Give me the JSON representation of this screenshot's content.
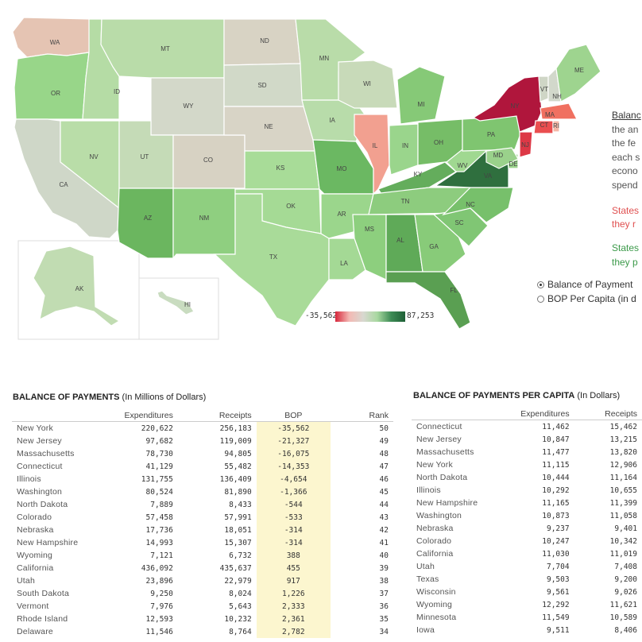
{
  "map": {
    "states": [
      {
        "id": "WA",
        "label": "WA",
        "color": "#e5c4b3"
      },
      {
        "id": "OR",
        "label": "OR",
        "color": "#98d689"
      },
      {
        "id": "CA",
        "label": "CA",
        "color": "#cfd7c8"
      },
      {
        "id": "ID",
        "label": "ID",
        "color": "#b5dca5"
      },
      {
        "id": "NV",
        "label": "NV",
        "color": "#b9dda8"
      },
      {
        "id": "MT",
        "label": "MT",
        "color": "#b9dca9"
      },
      {
        "id": "WY",
        "label": "WY",
        "color": "#d3d8c9"
      },
      {
        "id": "UT",
        "label": "UT",
        "color": "#c5dbb7"
      },
      {
        "id": "AZ",
        "label": "AZ",
        "color": "#6bb65f"
      },
      {
        "id": "CO",
        "label": "CO",
        "color": "#d7d2c3"
      },
      {
        "id": "NM",
        "label": "NM",
        "color": "#8fcf80"
      },
      {
        "id": "ND",
        "label": "ND",
        "color": "#d8d3c4"
      },
      {
        "id": "SD",
        "label": "SD",
        "color": "#d1d9c8"
      },
      {
        "id": "NE",
        "label": "NE",
        "color": "#d8d4c6"
      },
      {
        "id": "KS",
        "label": "KS",
        "color": "#a8dc98"
      },
      {
        "id": "OK",
        "label": "OK",
        "color": "#a5da95"
      },
      {
        "id": "TX",
        "label": "TX",
        "color": "#a9db99"
      },
      {
        "id": "MN",
        "label": "MN",
        "color": "#b9dca9"
      },
      {
        "id": "IA",
        "label": "IA",
        "color": "#b8dcaa"
      },
      {
        "id": "MO",
        "label": "MO",
        "color": "#6bb862"
      },
      {
        "id": "AR",
        "label": "AR",
        "color": "#9bd68c"
      },
      {
        "id": "LA",
        "label": "LA",
        "color": "#a4d995"
      },
      {
        "id": "WI",
        "label": "WI",
        "color": "#c8dab9"
      },
      {
        "id": "IL",
        "label": "IL",
        "color": "#f2a090"
      },
      {
        "id": "MI",
        "label": "MI",
        "color": "#86c977"
      },
      {
        "id": "IN",
        "label": "IN",
        "color": "#9ad58c"
      },
      {
        "id": "OH",
        "label": "OH",
        "color": "#76bd67"
      },
      {
        "id": "KY",
        "label": "KY",
        "color": "#64ad5c"
      },
      {
        "id": "TN",
        "label": "TN",
        "color": "#8dcc7e"
      },
      {
        "id": "MS",
        "label": "MS",
        "color": "#8dcf7e"
      },
      {
        "id": "AL",
        "label": "AL",
        "color": "#5faa58"
      },
      {
        "id": "GA",
        "label": "GA",
        "color": "#88cb79"
      },
      {
        "id": "FL",
        "label": "FL",
        "color": "#5a9f52"
      },
      {
        "id": "SC",
        "label": "SC",
        "color": "#80c674"
      },
      {
        "id": "NC",
        "label": "NC",
        "color": "#77c06b"
      },
      {
        "id": "VA",
        "label": "VA",
        "color": "#2f6f3e"
      },
      {
        "id": "WV",
        "label": "WV",
        "color": "#a0d891"
      },
      {
        "id": "PA",
        "label": "PA",
        "color": "#7fc570"
      },
      {
        "id": "NY",
        "label": "NY",
        "color": "#b0163c"
      },
      {
        "id": "VT",
        "label": "VT",
        "color": "#cfd6c6"
      },
      {
        "id": "NH",
        "label": "NH",
        "color": "#d2d8cb"
      },
      {
        "id": "ME",
        "label": "ME",
        "color": "#9ed48f"
      },
      {
        "id": "MA",
        "label": "MA",
        "color": "#f07060"
      },
      {
        "id": "CT",
        "label": "CT",
        "color": "#ea4e4f"
      },
      {
        "id": "RI",
        "label": "RI",
        "color": "#f4b8a8"
      },
      {
        "id": "NJ",
        "label": "NJ",
        "color": "#dd3846"
      },
      {
        "id": "DE",
        "label": "DE",
        "color": "#9bd48c"
      },
      {
        "id": "MD",
        "label": "MD",
        "color": "#9ad18b"
      },
      {
        "id": "AK",
        "label": "AK",
        "color": "#c1dcb2"
      },
      {
        "id": "HI",
        "label": "HI",
        "color": "#c9dcc0"
      }
    ],
    "legend": {
      "min": "-35,562",
      "max": "87,253"
    }
  },
  "side_text": {
    "title": "Balanc",
    "lines": [
      "the an",
      "the fe",
      "each s",
      "econo",
      "spend"
    ],
    "red_lines": [
      "States",
      "they r"
    ],
    "green_lines": [
      "States",
      "they p"
    ]
  },
  "radio": [
    {
      "label": "Balance of Payment",
      "selected": true
    },
    {
      "label": "BOP Per Capita (in d",
      "selected": false
    }
  ],
  "bop_table": {
    "title": "BALANCE OF PAYMENTS",
    "subtitle": "(In Millions of Dollars)",
    "headers": [
      "",
      "Expenditures",
      "Receipts",
      "BOP",
      "Rank"
    ],
    "rows": [
      [
        "New York",
        "220,622",
        "256,183",
        "-35,562",
        "50"
      ],
      [
        "New Jersey",
        "97,682",
        "119,009",
        "-21,327",
        "49"
      ],
      [
        "Massachusetts",
        "78,730",
        "94,805",
        "-16,075",
        "48"
      ],
      [
        "Connecticut",
        "41,129",
        "55,482",
        "-14,353",
        "47"
      ],
      [
        "Illinois",
        "131,755",
        "136,409",
        "-4,654",
        "46"
      ],
      [
        "Washington",
        "80,524",
        "81,890",
        "-1,366",
        "45"
      ],
      [
        "North Dakota",
        "7,889",
        "8,433",
        "-544",
        "44"
      ],
      [
        "Colorado",
        "57,458",
        "57,991",
        "-533",
        "43"
      ],
      [
        "Nebraska",
        "17,736",
        "18,051",
        "-314",
        "42"
      ],
      [
        "New Hampshire",
        "14,993",
        "15,307",
        "-314",
        "41"
      ],
      [
        "Wyoming",
        "7,121",
        "6,732",
        "388",
        "40"
      ],
      [
        "California",
        "436,092",
        "435,637",
        "455",
        "39"
      ],
      [
        "Utah",
        "23,896",
        "22,979",
        "917",
        "38"
      ],
      [
        "South Dakota",
        "9,250",
        "8,024",
        "1,226",
        "37"
      ],
      [
        "Vermont",
        "7,976",
        "5,643",
        "2,333",
        "36"
      ],
      [
        "Rhode Island",
        "12,593",
        "10,232",
        "2,361",
        "35"
      ],
      [
        "Delaware",
        "11,546",
        "8,764",
        "2,782",
        "34"
      ]
    ]
  },
  "pc_table": {
    "title": "BALANCE OF PAYMENTS PER CAPITA",
    "subtitle": "(In Dollars)",
    "headers": [
      "",
      "Expenditures",
      "Receipts"
    ],
    "rows": [
      [
        "Connecticut",
        "11,462",
        "15,462"
      ],
      [
        "New Jersey",
        "10,847",
        "13,215"
      ],
      [
        "Massachusetts",
        "11,477",
        "13,820"
      ],
      [
        "New York",
        "11,115",
        "12,906"
      ],
      [
        "North Dakota",
        "10,444",
        "11,164"
      ],
      [
        "Illinois",
        "10,292",
        "10,655"
      ],
      [
        "New Hampshire",
        "11,165",
        "11,399"
      ],
      [
        "Washington",
        "10,873",
        "11,058"
      ],
      [
        "Nebraska",
        "9,237",
        "9,401"
      ],
      [
        "Colorado",
        "10,247",
        "10,342"
      ],
      [
        "California",
        "11,030",
        "11,019"
      ],
      [
        "Utah",
        "7,704",
        "7,408"
      ],
      [
        "Texas",
        "9,503",
        "9,200"
      ],
      [
        "Wisconsin",
        "9,561",
        "9,026"
      ],
      [
        "Wyoming",
        "12,292",
        "11,621"
      ],
      [
        "Minnesota",
        "11,549",
        "10,589"
      ],
      [
        "Iowa",
        "9,511",
        "8,406"
      ]
    ]
  }
}
